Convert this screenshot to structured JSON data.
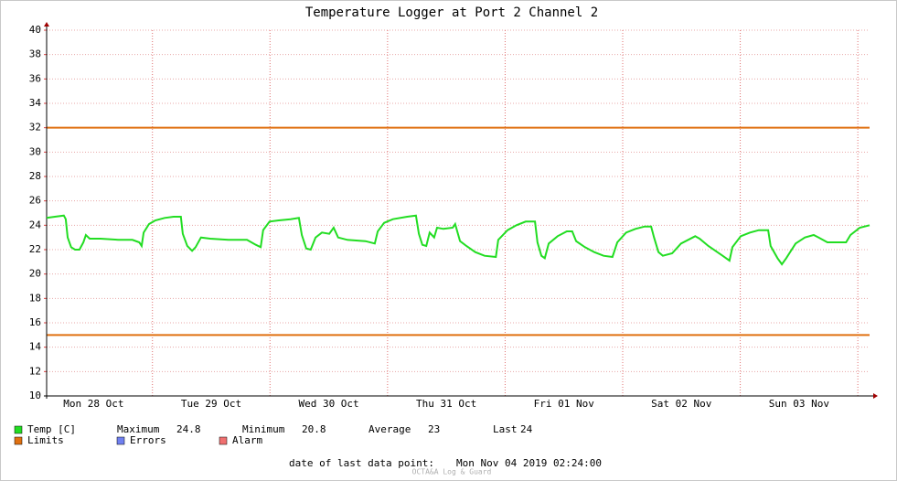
{
  "chart_data": {
    "type": "line",
    "title": "Temperature Logger at Port 2 Channel 2",
    "x": [
      2.4,
      4.1,
      5.9,
      6.3,
      6.7,
      7.4,
      8.2,
      9.1,
      9.9,
      10.4,
      11.2,
      13.4,
      17.1,
      19.9,
      21.3,
      21.8,
      22.2,
      23.3,
      24.6,
      26.5,
      28.3,
      29.8,
      30.2,
      31.1,
      32.1,
      32.8,
      33.9,
      35.8,
      39.5,
      43.3,
      45.1,
      46.1,
      46.6,
      47.9,
      49.8,
      52.2,
      53.9,
      54.5,
      55.4,
      56.3,
      57.3,
      58.6,
      60.1,
      61.0,
      61.9,
      63.8,
      67.5,
      69.4,
      70.0,
      71.3,
      73.1,
      76.0,
      77.8,
      78.4,
      79.1,
      79.9,
      80.6,
      81.5,
      82.1,
      83.4,
      85.3,
      85.8,
      86.8,
      88.1,
      89.9,
      91.8,
      94.1,
      94.6,
      96.5,
      98.3,
      100.2,
      102.1,
      102.6,
      103.4,
      104.1,
      104.9,
      106.7,
      108.6,
      109.7,
      110.5,
      112.3,
      114.2,
      116.1,
      117.9,
      118.9,
      120.7,
      122.6,
      124.5,
      125.8,
      126.4,
      127.3,
      128.2,
      130.1,
      131.9,
      134.8,
      135.7,
      137.5,
      140.4,
      141.8,
      142.4,
      144.1,
      146.0,
      147.8,
      149.7,
      150.2,
      151.6,
      152.5,
      153.4,
      155.3,
      157.2,
      159.0,
      160.0,
      161.8,
      165.6,
      166.5,
      168.4,
      170.4
    ],
    "series": [
      {
        "name": "Temp [C]",
        "color": "#22dd22",
        "values": [
          24.6,
          24.7,
          24.8,
          24.5,
          23.0,
          22.2,
          22.0,
          22.0,
          22.6,
          23.2,
          22.9,
          22.9,
          22.8,
          22.8,
          22.6,
          22.3,
          23.4,
          24.1,
          24.4,
          24.6,
          24.7,
          24.7,
          23.3,
          22.3,
          21.9,
          22.2,
          23.0,
          22.9,
          22.8,
          22.8,
          22.4,
          22.2,
          23.6,
          24.3,
          24.4,
          24.5,
          24.6,
          23.2,
          22.1,
          22.0,
          23.0,
          23.4,
          23.3,
          23.8,
          23.0,
          22.8,
          22.7,
          22.5,
          23.5,
          24.2,
          24.5,
          24.7,
          24.8,
          23.3,
          22.4,
          22.3,
          23.4,
          23.0,
          23.8,
          23.7,
          23.8,
          24.1,
          22.7,
          22.3,
          21.8,
          21.5,
          21.4,
          22.8,
          23.6,
          24.0,
          24.3,
          24.3,
          22.6,
          21.5,
          21.3,
          22.5,
          23.1,
          23.5,
          23.5,
          22.7,
          22.2,
          21.8,
          21.5,
          21.4,
          22.6,
          23.4,
          23.7,
          23.9,
          23.9,
          23.0,
          21.8,
          21.5,
          21.7,
          22.5,
          23.1,
          22.9,
          22.3,
          21.5,
          21.1,
          22.2,
          23.1,
          23.4,
          23.6,
          23.6,
          22.3,
          21.3,
          20.8,
          21.3,
          22.5,
          23.0,
          23.2,
          23.0,
          22.6,
          22.6,
          23.2,
          23.8,
          24.0
        ]
      }
    ],
    "limits": {
      "name": "Limits",
      "color": "#e07010",
      "values": [
        32,
        15
      ]
    },
    "other_legend": [
      {
        "name": "Errors",
        "color": "#7080f0"
      },
      {
        "name": "Alarm",
        "color": "#f07070"
      }
    ],
    "stats": [
      {
        "label": "Maximum",
        "value": 24.8
      },
      {
        "label": "Minimum",
        "value": 20.8
      },
      {
        "label": "Average",
        "value": 23.0
      },
      {
        "label": "Last",
        "value": 24.0
      }
    ],
    "xlim": [
      2.4,
      170.4
    ],
    "xticks": [
      {
        "value": 12,
        "label": "Mon 28 Oct"
      },
      {
        "value": 36,
        "label": "Tue 29 Oct"
      },
      {
        "value": 60,
        "label": "Wed 30 Oct"
      },
      {
        "value": 84,
        "label": "Thu 31 Oct"
      },
      {
        "value": 108,
        "label": "Fri 01 Nov"
      },
      {
        "value": 132,
        "label": "Sat 02 Nov"
      },
      {
        "value": 156,
        "label": "Sun 03 Nov"
      }
    ],
    "xgrid": [
      24,
      48,
      72,
      96,
      120,
      144,
      168
    ],
    "ylim": [
      10,
      40
    ],
    "yticks": [
      10,
      12,
      14,
      16,
      18,
      20,
      22,
      24,
      26,
      28,
      30,
      32,
      34,
      36,
      38,
      40
    ],
    "grid": true,
    "footer_label": "date of last data point:",
    "footer_value": "Mon Nov 04 2019 02:24:00",
    "watermark": "OCTA&A Log & Guard"
  }
}
